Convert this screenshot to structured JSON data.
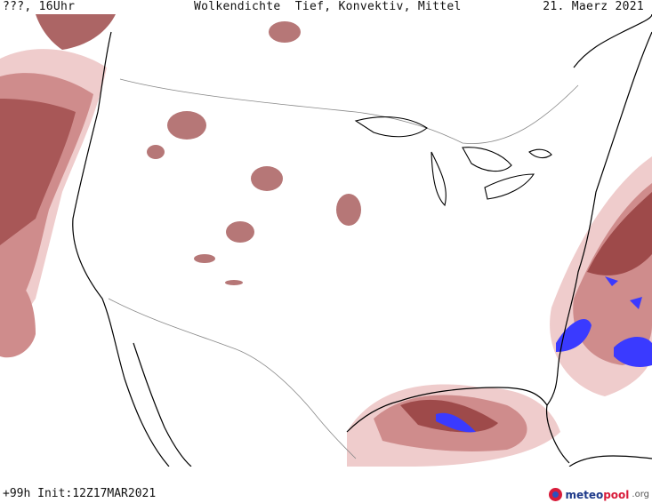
{
  "header": {
    "left": "???, 16Uhr",
    "title": "Wolkendichte  Tief, Konvektiv, Mittel",
    "date": "21. Maerz 2021"
  },
  "footer": {
    "run": "+99h Init:12Z17MAR2021"
  },
  "branding": {
    "name_part1": "meteo",
    "name_part2": "pool",
    "tld": ".org",
    "logo_icon": "meteopool-globe-icon"
  },
  "map": {
    "region": "USA / North America",
    "palette": {
      "cloud_light": "#efcccc",
      "cloud_mid": "#cf8c8c",
      "cloud_dark": "#9e4a4a",
      "convective": "#3a3aff",
      "coastline": "#000000",
      "border": "#888888"
    }
  }
}
